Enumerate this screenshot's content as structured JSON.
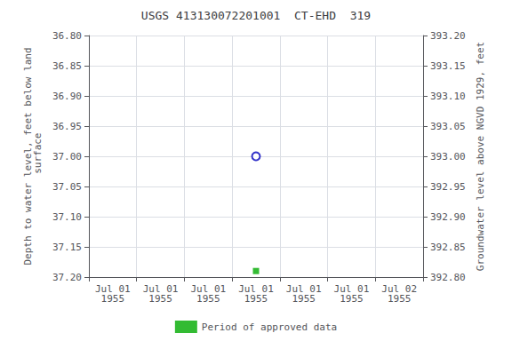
{
  "chart_data": {
    "type": "scatter",
    "title": "USGS 413130072201001  CT-EHD  319",
    "ylabel": "Depth to water level, feet below land\n surface",
    "y2label": "Groundwater level above NGVD 1929, feet",
    "categories": [
      "Jul 01\n1955",
      "Jul 01\n1955",
      "Jul 01\n1955",
      "Jul 01\n1955",
      "Jul 01\n1955",
      "Jul 01\n1955",
      "Jul 02\n1955"
    ],
    "series": [
      {
        "color": "#0000bb",
        "marker": "open_circle",
        "values": [
          null,
          null,
          null,
          37.0,
          null,
          null,
          null
        ]
      },
      {
        "name": "Period of approved data",
        "color": "#00aa00",
        "marker": "square",
        "values": [
          null,
          null,
          null,
          37.19,
          null,
          null,
          null
        ]
      }
    ],
    "ylim": [
      37.2,
      36.8
    ],
    "yticks": [
      {
        "value": 36.8,
        "label": "36.80"
      },
      {
        "value": 36.85,
        "label": "36.85"
      },
      {
        "value": 36.9,
        "label": "36.90"
      },
      {
        "value": 36.95,
        "label": "36.95"
      },
      {
        "value": 37.0,
        "label": "37.00"
      },
      {
        "value": 37.05,
        "label": "37.05"
      },
      {
        "value": 37.1,
        "label": "37.10"
      },
      {
        "value": 37.15,
        "label": "37.15"
      },
      {
        "value": 37.2,
        "label": "37.20"
      }
    ],
    "y2lim": [
      392.8,
      393.2
    ],
    "y2ticks": [
      {
        "value": 392.8,
        "label": "392.80"
      },
      {
        "value": 392.85,
        "label": "392.85"
      },
      {
        "value": 392.9,
        "label": "392.90"
      },
      {
        "value": 392.95,
        "label": "392.95"
      },
      {
        "value": 393.0,
        "label": "393.00"
      },
      {
        "value": 393.05,
        "label": "393.05"
      },
      {
        "value": 393.1,
        "label": "393.10"
      },
      {
        "value": 393.15,
        "label": "393.15"
      },
      {
        "value": 393.2,
        "label": "393.20"
      }
    ],
    "grid": true,
    "legend": "bottom"
  }
}
